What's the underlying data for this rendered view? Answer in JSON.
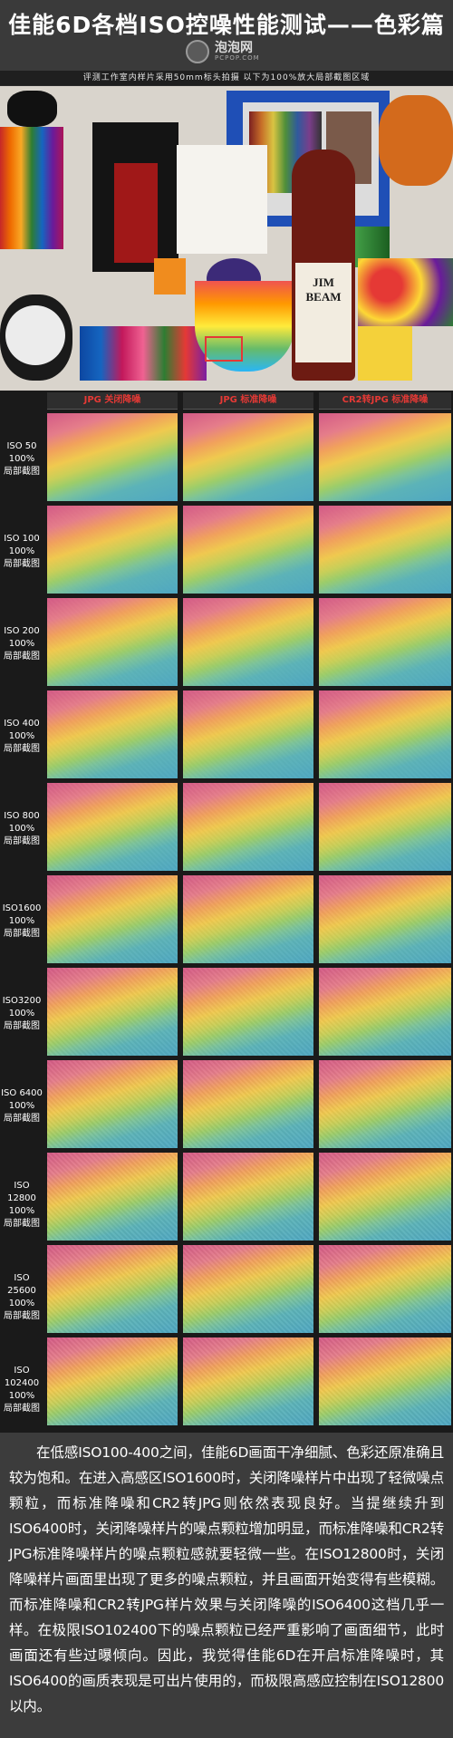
{
  "header": {
    "title": "佳能6D各档ISO控噪性能测试——色彩篇",
    "logo_text": "泡泡网",
    "logo_sub": "PCPOP.COM",
    "subtitle": "评测工作室内样片采用50mm标头拍摄 以下为100%放大局部截图区域"
  },
  "photo": {
    "bottle_label": "JIM BEAM"
  },
  "columns": [
    "JPG 关闭降噪",
    "JPG 标准降噪",
    "CR2转JPG 标准降噪"
  ],
  "rows": [
    {
      "iso": "ISO 50",
      "zoom": "100%",
      "note": "局部截图"
    },
    {
      "iso": "ISO 100",
      "zoom": "100%",
      "note": "局部截图"
    },
    {
      "iso": "ISO 200",
      "zoom": "100%",
      "note": "局部截图"
    },
    {
      "iso": "ISO 400",
      "zoom": "100%",
      "note": "局部截图"
    },
    {
      "iso": "ISO 800",
      "zoom": "100%",
      "note": "局部截图"
    },
    {
      "iso": "ISO1600",
      "zoom": "100%",
      "note": "局部截图"
    },
    {
      "iso": "ISO3200",
      "zoom": "100%",
      "note": "局部截图"
    },
    {
      "iso": "ISO 6400",
      "zoom": "100%",
      "note": "局部截图"
    },
    {
      "iso": "ISO 12800",
      "zoom": "100%",
      "note": "局部截图"
    },
    {
      "iso": "ISO 25600",
      "zoom": "100%",
      "note": "局部截图"
    },
    {
      "iso": "ISO 102400",
      "zoom": "100%",
      "note": "局部截图"
    }
  ],
  "summary": "在低感ISO100-400之间，佳能6D画面干净细腻、色彩还原准确且较为饱和。在进入高感区ISO1600时，关闭降噪样片中出现了轻微噪点颗粒，而标准降噪和CR2转JPG则依然表现良好。当提继续升到ISO6400时，关闭降噪样片的噪点颗粒增加明显，而标准降噪和CR2转JPG标准降噪样片的噪点颗粒感就要轻微一些。在ISO12800时，关闭降噪样片画面里出现了更多的噪点颗粒，并且画面开始变得有些模糊。而标准降噪和CR2转JPG样片效果与关闭降噪的ISO6400这档几乎一样。在极限ISO102400下的噪点颗粒已经严重影响了画面细节，此时画面还有些过曝倾向。因此，我觉得佳能6D在开启标准降噪时，其ISO6400的画质表现是可出片使用的，而极限高感应控制在ISO12800以内。"
}
